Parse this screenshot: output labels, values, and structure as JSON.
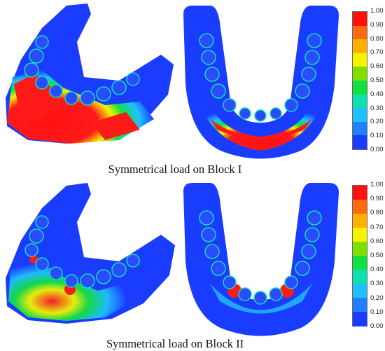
{
  "colors": {
    "blue_dark": "#1a1aff",
    "blue": "#2f5bff",
    "cyan": "#3cc8ff",
    "green": "#2ee87a",
    "yellow": "#f2f230",
    "orange": "#ff8c1a",
    "red": "#ff1a1a"
  },
  "legend": {
    "ticks": [
      "1.00",
      "0.90",
      "0.80",
      "0.70",
      "0.60",
      "0.50",
      "0.40",
      "0.30",
      "0.20",
      "0.10",
      "0.00"
    ],
    "segment_colors": [
      "#ff1010",
      "#ff6a10",
      "#ffb000",
      "#f4f400",
      "#7fe000",
      "#10e040",
      "#10e0b0",
      "#20c0ff",
      "#2080ff",
      "#1a3cff"
    ]
  },
  "panels": [
    {
      "caption": "Symmetrical load on Block I"
    },
    {
      "caption": "Symmetrical load on Block II"
    }
  ]
}
